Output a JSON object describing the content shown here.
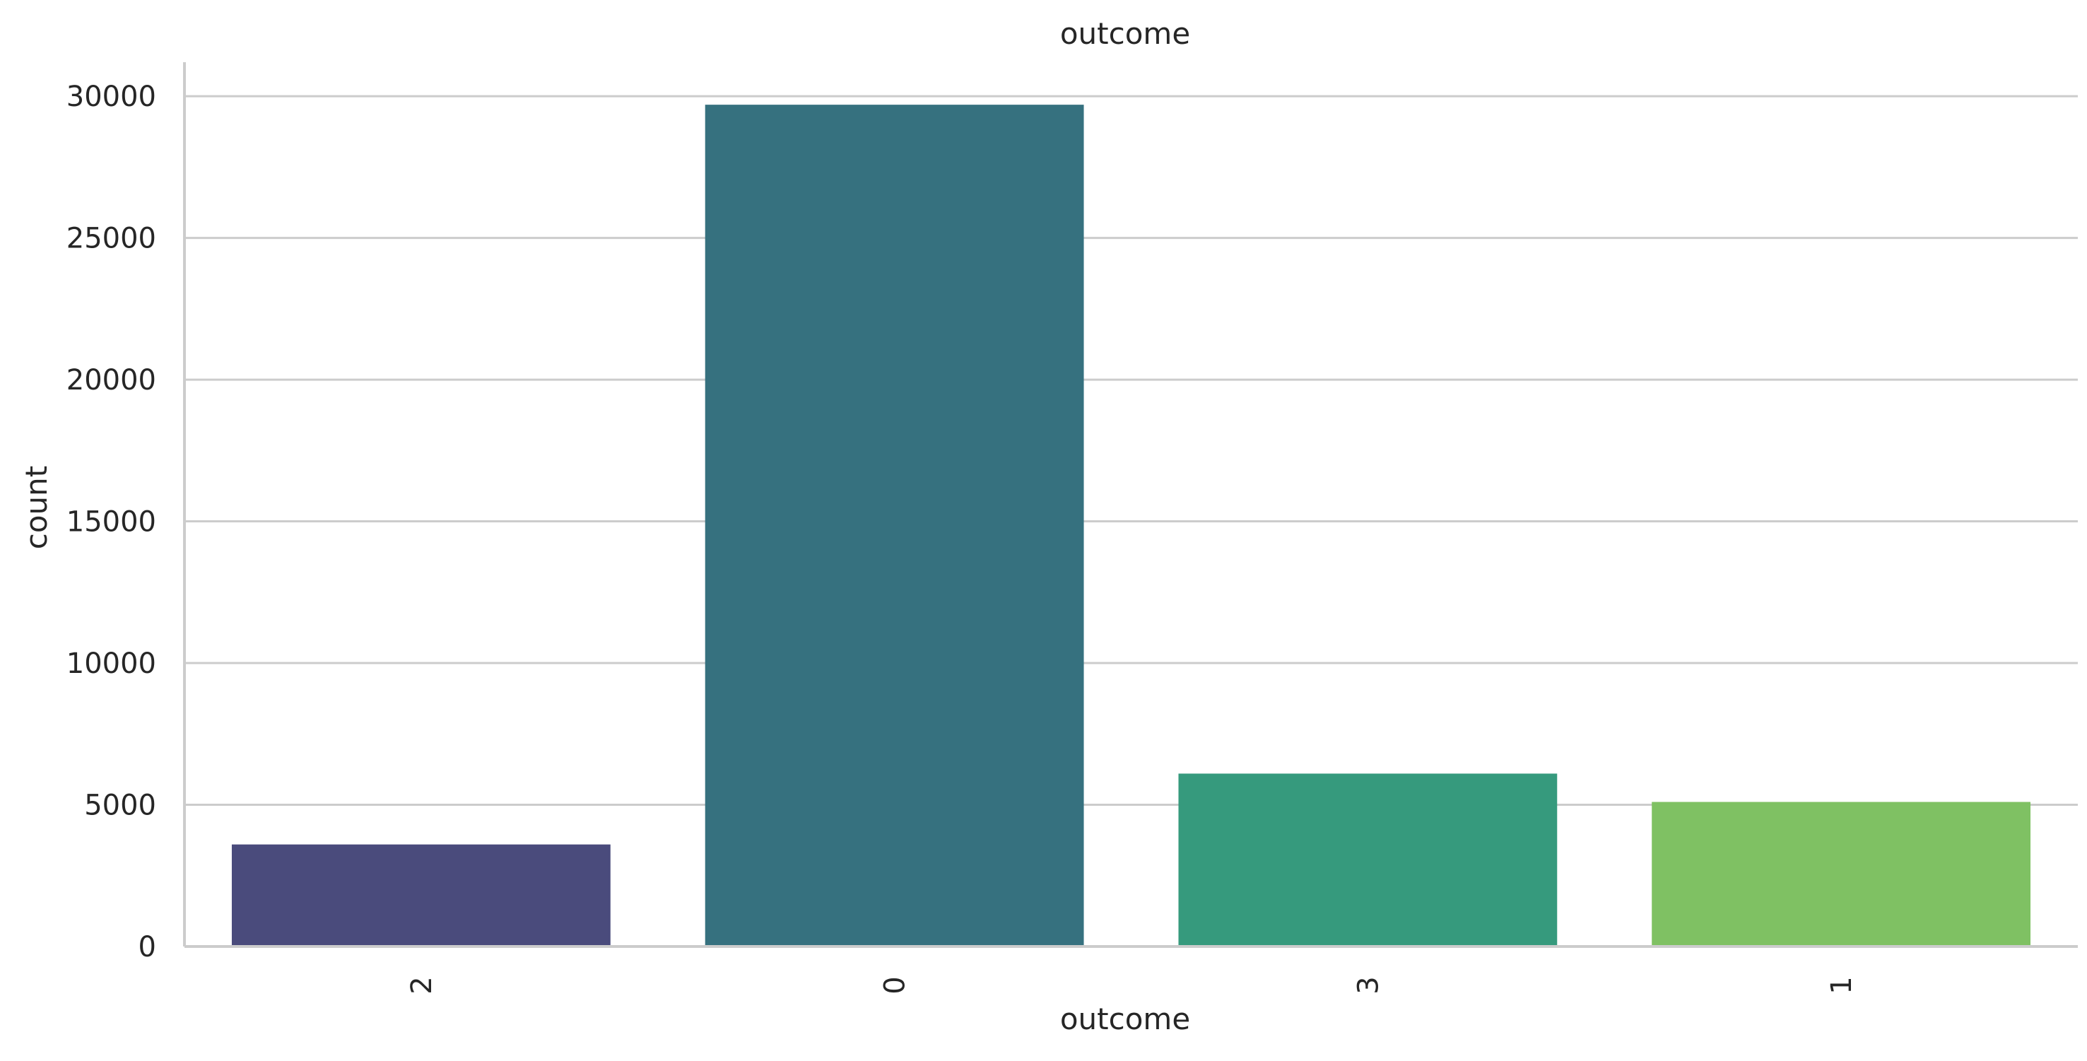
{
  "chart_data": {
    "type": "bar",
    "title": "outcome",
    "xlabel": "outcome",
    "ylabel": "count",
    "categories": [
      "2",
      "0",
      "3",
      "1"
    ],
    "values": [
      3600,
      29700,
      6100,
      5100
    ],
    "ylim": [
      0,
      31200
    ],
    "yticks": [
      0,
      5000,
      10000,
      15000,
      20000,
      25000,
      30000
    ],
    "ytick_labels": [
      "0",
      "5000",
      "10000",
      "15000",
      "20000",
      "25000",
      "30000"
    ],
    "xtick_rotation": 90,
    "grid": {
      "y": true,
      "x": false
    },
    "colors": [
      "#4a4b7c",
      "#36717f",
      "#369a7d",
      "#7fc163"
    ],
    "background": "#ffffff",
    "grid_color": "#cccccc",
    "spine_color": "#cccccc",
    "legend": null
  }
}
